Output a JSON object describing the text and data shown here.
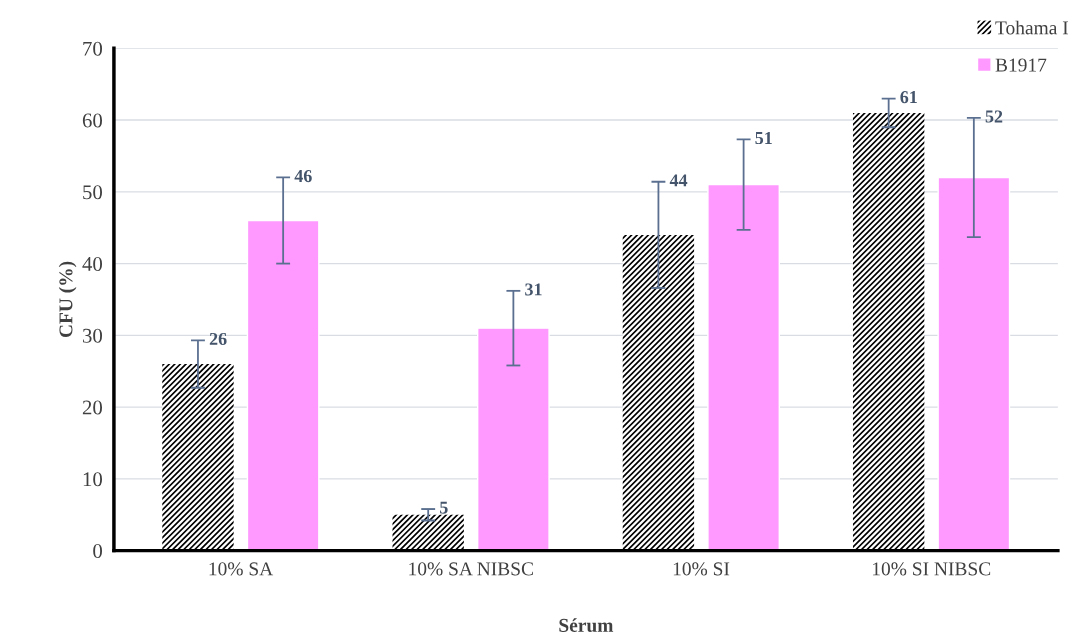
{
  "chart_data": {
    "type": "bar",
    "xlabel": "Sérum",
    "ylabel": "CFU (%)",
    "categories": [
      "10% SA",
      "10% SA NIBSC",
      "10% SI",
      "10% SI NIBSC"
    ],
    "series": [
      {
        "name": "Tohama I",
        "color": "#000000",
        "values": [
          26,
          5,
          44,
          61
        ],
        "errors": [
          3.3,
          0.8,
          7.4,
          2
        ]
      },
      {
        "name": "B1917",
        "color": "#ff99ff",
        "values": [
          46,
          31,
          51,
          52
        ],
        "errors": [
          6,
          5.2,
          6.3,
          8.3
        ]
      }
    ],
    "ylim": [
      0,
      70
    ],
    "yticks": [
      0,
      10,
      20,
      30,
      40,
      50,
      60,
      70
    ],
    "grid": "y",
    "legend": "top right",
    "data_labels": true
  }
}
